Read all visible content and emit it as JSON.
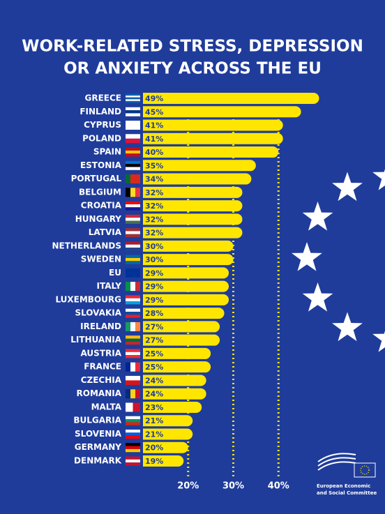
{
  "chart_data": {
    "type": "bar",
    "orientation": "horizontal",
    "title": [
      "WORK-RELATED STRESS, DEPRESSION",
      "OR ANXIETY ACROSS THE EU"
    ],
    "categories": [
      "GREECE",
      "FINLAND",
      "CYPRUS",
      "POLAND",
      "SPAIN",
      "ESTONIA",
      "PORTUGAL",
      "BELGIUM",
      "CROATIA",
      "HUNGARY",
      "LATVIA",
      "NETHERLANDS",
      "SWEDEN",
      "EU",
      "ITALY",
      "LUXEMBOURG",
      "SLOVAKIA",
      "IRELAND",
      "LITHUANIA",
      "AUSTRIA",
      "FRANCE",
      "CZECHIA",
      "ROMANIA",
      "MALTA",
      "BULGARIA",
      "SLOVENIA",
      "GERMANY",
      "DENMARK"
    ],
    "values": [
      49,
      45,
      41,
      41,
      40,
      35,
      34,
      32,
      32,
      32,
      32,
      30,
      30,
      29,
      29,
      29,
      28,
      27,
      27,
      25,
      25,
      24,
      24,
      23,
      21,
      21,
      20,
      19
    ],
    "value_labels": [
      "49%",
      "45%",
      "41%",
      "41%",
      "40%",
      "35%",
      "34%",
      "32%",
      "32%",
      "32%",
      "32%",
      "30%",
      "30%",
      "29%",
      "29%",
      "29%",
      "28%",
      "27%",
      "27%",
      "25%",
      "25%",
      "24%",
      "24%",
      "23%",
      "21%",
      "21%",
      "20%",
      "19%"
    ],
    "color": "#ffe600",
    "xlim": [
      10,
      50
    ],
    "xticks": [
      {
        "value": 20,
        "label": "20%"
      },
      {
        "value": 30,
        "label": "30%"
      },
      {
        "value": 40,
        "label": "40%"
      }
    ],
    "grid": true,
    "logo_text": [
      "European Economic",
      "and Social Committee"
    ]
  }
}
